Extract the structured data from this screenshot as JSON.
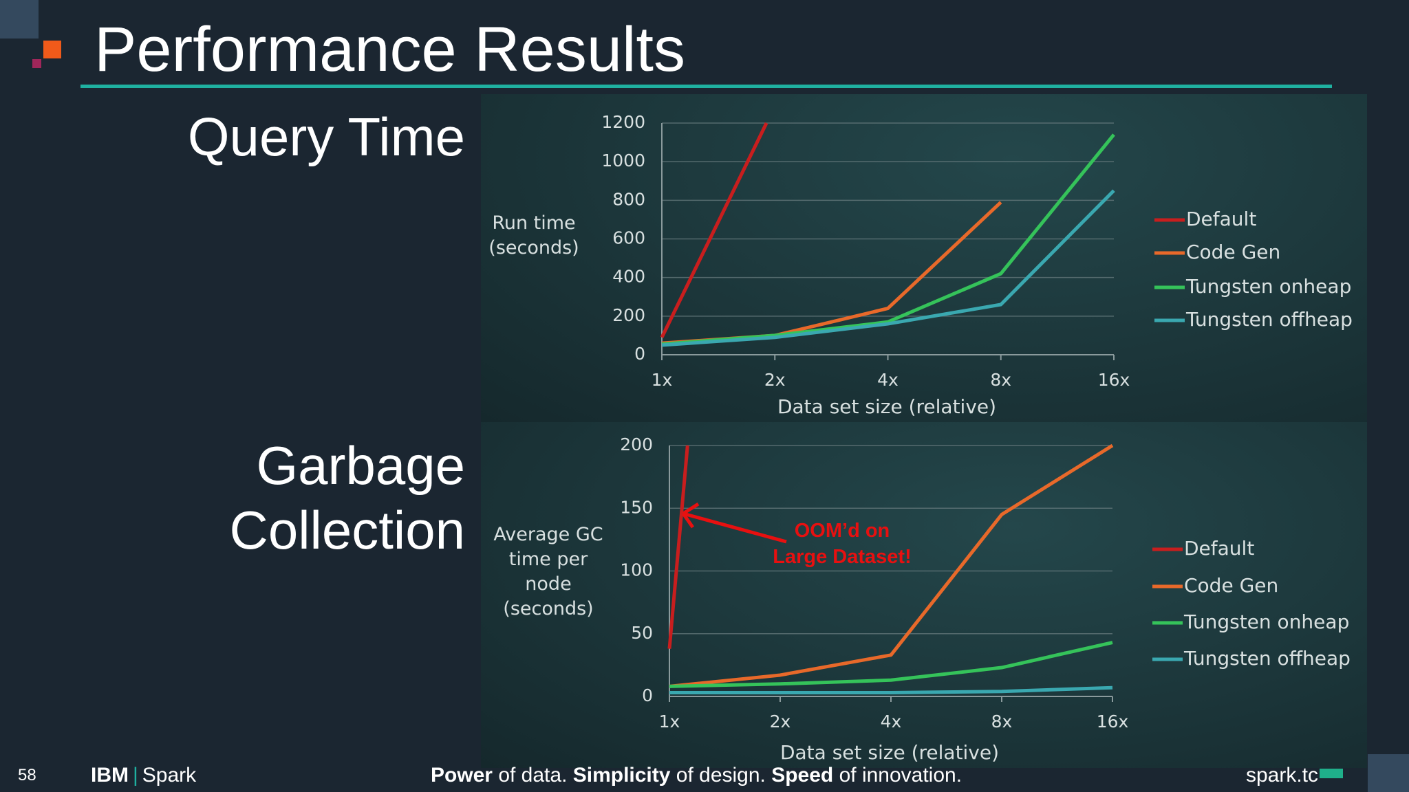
{
  "slide": {
    "title": "Performance Results",
    "sections": [
      [
        "Query Time"
      ],
      [
        "Garbage",
        "Collection"
      ]
    ],
    "footer": {
      "page": "58",
      "brand": "IBM",
      "product": "Spark",
      "tagline": [
        {
          "text": "Power",
          "bold": true
        },
        {
          "text": " of data. ",
          "bold": false
        },
        {
          "text": "Simplicity",
          "bold": true
        },
        {
          "text": " of design. ",
          "bold": false
        },
        {
          "text": "Speed",
          "bold": true
        },
        {
          "text": " of innovation.",
          "bold": false
        }
      ],
      "site": "spark.tc"
    }
  },
  "chart_data": [
    {
      "type": "line",
      "xlabel": "Data set size (relative)",
      "ylabel": "Run time (seconds)",
      "x": [
        1,
        2,
        4,
        8,
        16
      ],
      "xscale": "log",
      "xlim": [
        1,
        16
      ],
      "xticks": [
        {
          "value": 1,
          "label": "1x"
        },
        {
          "value": 2,
          "label": "2x"
        },
        {
          "value": 4,
          "label": "4x"
        },
        {
          "value": 8,
          "label": "8x"
        },
        {
          "value": 16,
          "label": "16x"
        }
      ],
      "ylim": [
        0,
        1200
      ],
      "yticks": [
        0,
        200,
        400,
        600,
        800,
        1000,
        1200
      ],
      "grid": true,
      "series": [
        {
          "name": "Default",
          "color": "#c81e1e",
          "x": [
            1,
            1.9
          ],
          "values": [
            90,
            1200
          ]
        },
        {
          "name": "Code Gen",
          "color": "#e8692a",
          "values": [
            60,
            100,
            240,
            790,
            null
          ]
        },
        {
          "name": "Tungsten onheap",
          "color": "#35c35a",
          "values": [
            55,
            100,
            170,
            420,
            1140
          ]
        },
        {
          "name": "Tungsten offheap",
          "color": "#3aa8b0",
          "values": [
            50,
            90,
            160,
            260,
            850
          ]
        }
      ]
    },
    {
      "type": "line",
      "xlabel": "Data set size (relative)",
      "ylabel": "Average GC time per node (seconds)",
      "x": [
        1,
        2,
        4,
        8,
        16
      ],
      "xscale": "log",
      "xlim": [
        1,
        16
      ],
      "xticks": [
        {
          "value": 1,
          "label": "1x"
        },
        {
          "value": 2,
          "label": "2x"
        },
        {
          "value": 4,
          "label": "4x"
        },
        {
          "value": 8,
          "label": "8x"
        },
        {
          "value": 16,
          "label": "16x"
        }
      ],
      "ylim": [
        0,
        200
      ],
      "yticks": [
        0,
        50,
        100,
        150,
        200
      ],
      "grid": true,
      "annotation": [
        "OOM’d on",
        "Large Dataset!"
      ],
      "series": [
        {
          "name": "Default",
          "color": "#c81e1e",
          "x": [
            1,
            1.12
          ],
          "values": [
            38,
            200
          ]
        },
        {
          "name": "Code Gen",
          "color": "#e8692a",
          "values": [
            8,
            17,
            33,
            145,
            200
          ]
        },
        {
          "name": "Tungsten onheap",
          "color": "#35c35a",
          "values": [
            8,
            10,
            13,
            23,
            43
          ]
        },
        {
          "name": "Tungsten offheap",
          "color": "#3aa8b0",
          "values": [
            3,
            3,
            3,
            4,
            7
          ]
        }
      ]
    }
  ]
}
